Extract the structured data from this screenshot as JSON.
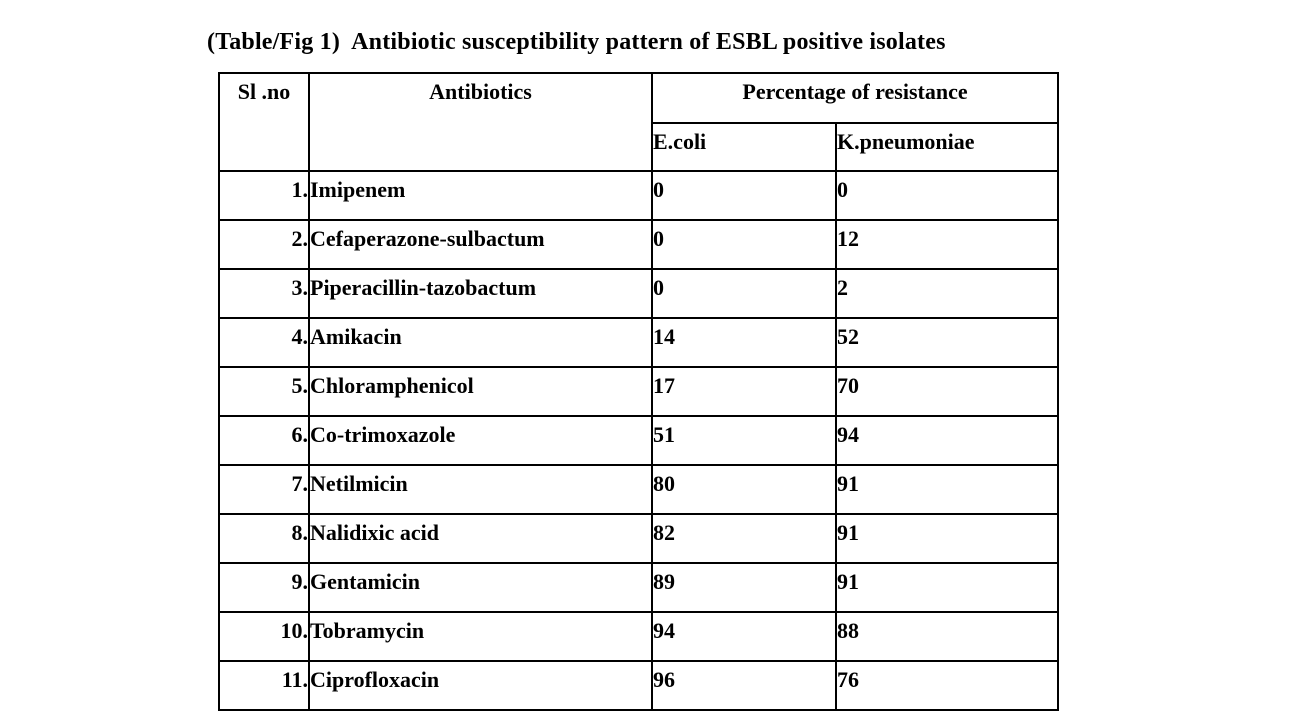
{
  "title": "(Table/Fig 1)  Antibiotic susceptibility pattern of ESBL positive isolates",
  "table": {
    "headers": {
      "sl_no": "Sl .no",
      "antibiotics": "Antibiotics",
      "resistance_group": "Percentage of resistance",
      "ecoli": "E.coli",
      "kpneumoniae": "K.pneumoniae"
    },
    "rows": [
      {
        "sl": "1.",
        "antibiotic": "Imipenem",
        "ecoli": "0",
        "kpneumoniae": "0"
      },
      {
        "sl": "2.",
        "antibiotic": "Cefaperazone-sulbactum",
        "ecoli": "0",
        "kpneumoniae": "12"
      },
      {
        "sl": "3.",
        "antibiotic": "Piperacillin-tazobactum",
        "ecoli": "0",
        "kpneumoniae": "2"
      },
      {
        "sl": "4.",
        "antibiotic": "Amikacin",
        "ecoli": "14",
        "kpneumoniae": "52"
      },
      {
        "sl": "5.",
        "antibiotic": "Chloramphenicol",
        "ecoli": "17",
        "kpneumoniae": "70"
      },
      {
        "sl": "6.",
        "antibiotic": "Co-trimoxazole",
        "ecoli": "51",
        "kpneumoniae": "94"
      },
      {
        "sl": "7.",
        "antibiotic": "Netilmicin",
        "ecoli": "80",
        "kpneumoniae": "91"
      },
      {
        "sl": "8.",
        "antibiotic": "Nalidixic acid",
        "ecoli": "82",
        "kpneumoniae": "91"
      },
      {
        "sl": "9.",
        "antibiotic": "Gentamicin",
        "ecoli": "89",
        "kpneumoniae": "91"
      },
      {
        "sl": "10.",
        "antibiotic": "Tobramycin",
        "ecoli": "94",
        "kpneumoniae": "88"
      },
      {
        "sl": "11.",
        "antibiotic": "Ciprofloxacin",
        "ecoli": "96",
        "kpneumoniae": "76"
      }
    ]
  },
  "chart_data": {
    "type": "table",
    "title": "(Table/Fig 1)  Antibiotic susceptibility pattern of ESBL positive isolates",
    "columns": [
      "Sl .no",
      "Antibiotics",
      "E.coli",
      "K.pneumoniae"
    ],
    "group_header": "Percentage of resistance",
    "categories": [
      "Imipenem",
      "Cefaperazone-sulbactum",
      "Piperacillin-tazobactum",
      "Amikacin",
      "Chloramphenicol",
      "Co-trimoxazole",
      "Netilmicin",
      "Nalidixic acid",
      "Gentamicin",
      "Tobramycin",
      "Ciprofloxacin"
    ],
    "series": [
      {
        "name": "E.coli",
        "values": [
          0,
          0,
          0,
          14,
          17,
          51,
          80,
          82,
          89,
          94,
          96
        ]
      },
      {
        "name": "K.pneumoniae",
        "values": [
          0,
          12,
          2,
          52,
          70,
          94,
          91,
          91,
          91,
          88,
          76
        ]
      }
    ]
  }
}
